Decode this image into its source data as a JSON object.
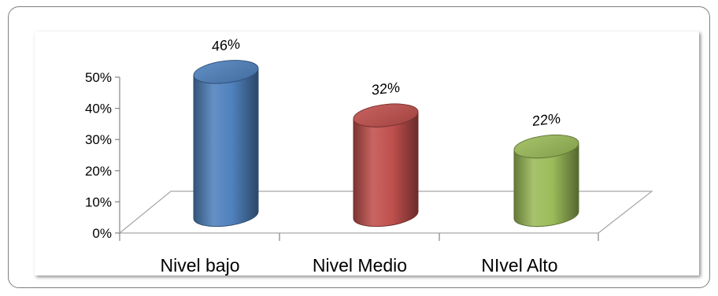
{
  "chart_data": {
    "type": "bar",
    "categories": [
      "Nivel bajo",
      "Nivel Medio",
      "NIvel Alto"
    ],
    "values": [
      46,
      32,
      22
    ],
    "data_labels": [
      "46%",
      "32%",
      "22%"
    ],
    "colors": [
      "#4f81bd",
      "#c0504d",
      "#9bbb59"
    ],
    "yticks": [
      "0%",
      "10%",
      "20%",
      "30%",
      "40%",
      "50%"
    ],
    "ylim": [
      0,
      50
    ],
    "title": "",
    "xlabel": "",
    "ylabel": "",
    "style": "3d-cylinder",
    "legend": "none",
    "grid": false
  }
}
